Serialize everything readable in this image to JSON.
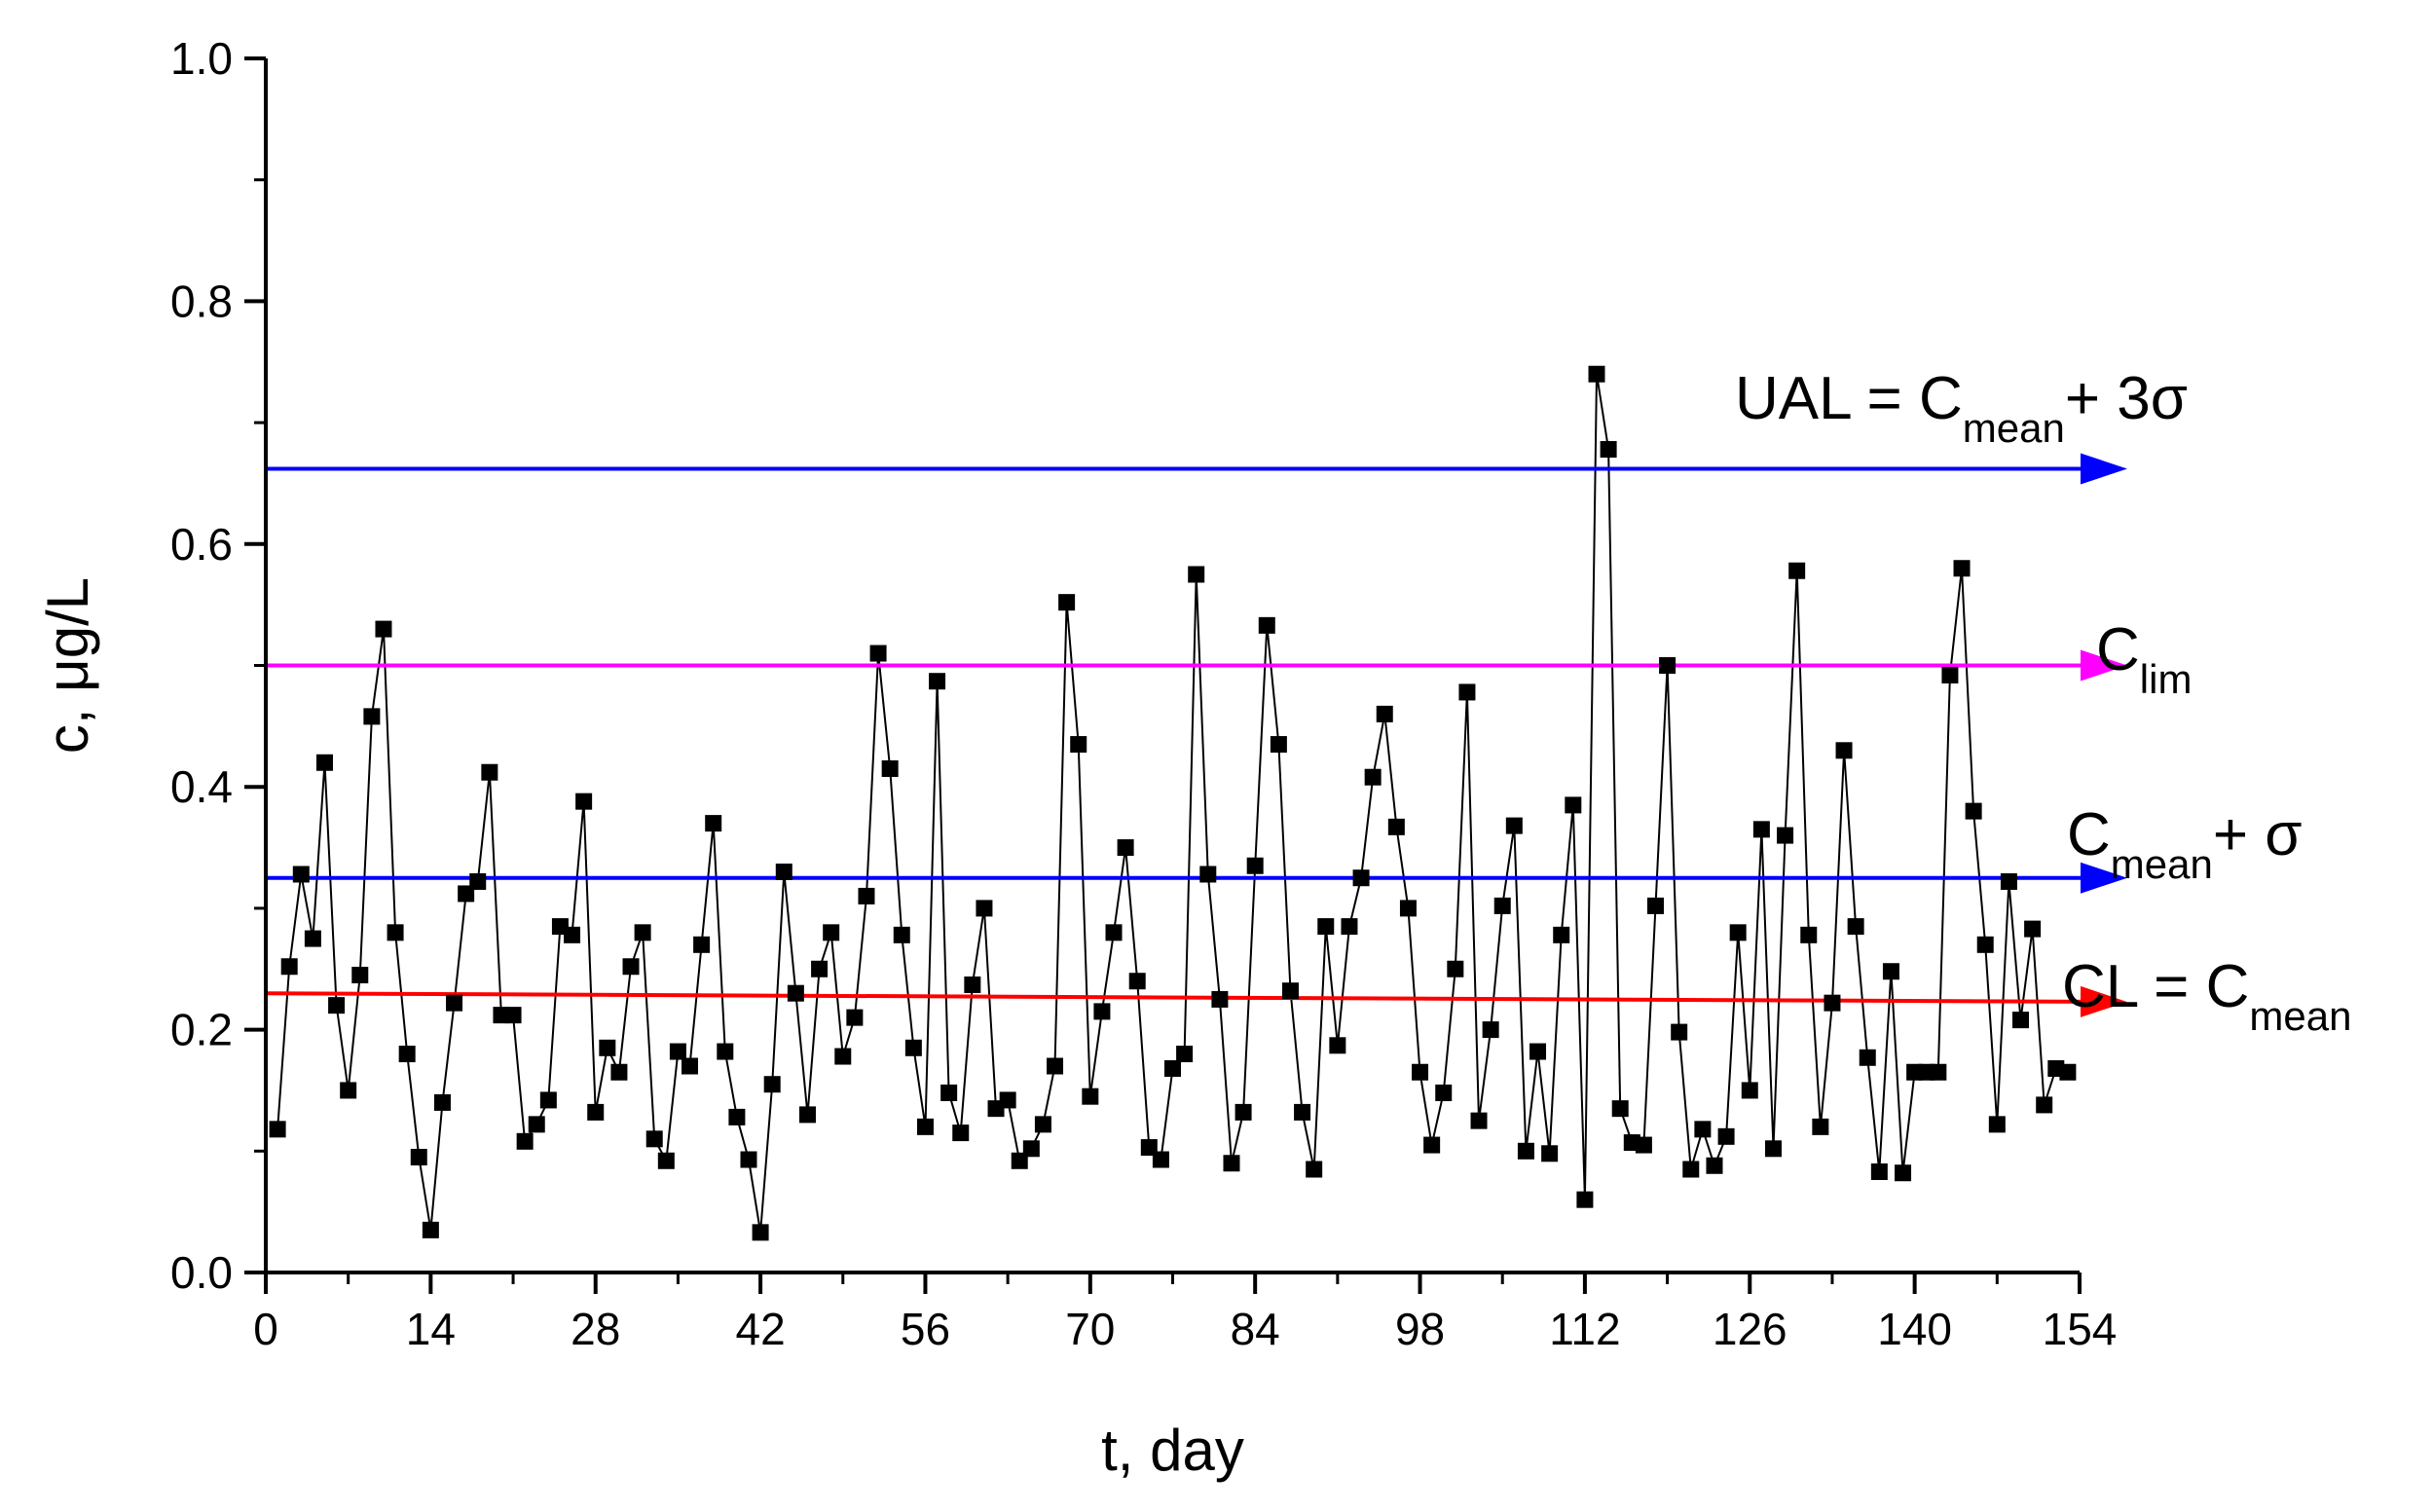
{
  "chart_data": {
    "type": "line",
    "title": "",
    "xlabel": "t, day",
    "ylabel": "c, μg/L",
    "xlim": [
      0,
      154
    ],
    "ylim": [
      0,
      1.0
    ],
    "xticks": [
      0,
      14,
      28,
      42,
      56,
      70,
      84,
      98,
      112,
      126,
      140,
      154
    ],
    "yticks": [
      0.0,
      0.2,
      0.4,
      0.6,
      0.8,
      1.0
    ],
    "xtick_labels": [
      "0",
      "14",
      "28",
      "42",
      "56",
      "70",
      "84",
      "98",
      "112",
      "126",
      "140",
      "154"
    ],
    "ytick_labels": [
      "0.0",
      "0.2",
      "0.4",
      "0.6",
      "0.8",
      "1.0"
    ],
    "grid": false,
    "series": [
      {
        "marker": "square",
        "color": "#000000",
        "x": [
          1,
          2,
          3,
          4,
          5,
          6,
          7,
          8,
          9,
          10,
          11,
          12,
          13,
          14,
          15,
          16,
          17,
          18,
          19,
          20,
          21,
          22,
          23,
          24,
          25,
          26,
          27,
          28,
          29,
          30,
          31,
          32,
          33,
          34,
          35,
          36,
          37,
          38,
          39,
          40,
          41,
          42,
          43,
          44,
          45,
          46,
          47,
          48,
          49,
          50,
          51,
          52,
          53,
          54,
          55,
          56,
          57,
          58,
          59,
          60,
          61,
          62,
          63,
          64,
          65,
          66,
          67,
          68,
          69,
          70,
          71,
          72,
          73,
          74,
          75,
          76,
          77,
          78,
          79,
          80,
          81,
          82,
          83,
          84,
          85,
          86,
          87,
          88,
          89,
          90,
          91,
          92,
          93,
          94,
          95,
          96,
          97,
          98,
          99,
          100,
          101,
          102,
          103,
          104,
          105,
          106,
          107,
          108,
          109,
          110,
          111,
          112,
          113,
          114,
          115,
          116,
          117,
          118,
          119,
          120,
          121,
          122,
          123,
          124,
          125,
          126,
          127,
          128,
          129,
          130,
          131,
          132,
          133,
          134,
          135,
          136,
          137,
          138,
          139,
          140,
          141,
          142,
          143,
          144,
          145,
          146,
          147,
          148,
          149,
          150,
          151,
          152,
          153
        ],
        "y": [
          0.118,
          0.252,
          0.328,
          0.275,
          0.42,
          0.22,
          0.15,
          0.245,
          0.458,
          0.53,
          0.28,
          0.18,
          0.095,
          0.035,
          0.14,
          0.222,
          0.312,
          0.322,
          0.412,
          0.212,
          0.212,
          0.108,
          0.122,
          0.142,
          0.285,
          0.278,
          0.388,
          0.132,
          0.185,
          0.165,
          0.252,
          0.28,
          0.11,
          0.092,
          0.182,
          0.17,
          0.27,
          0.37,
          0.182,
          0.128,
          0.093,
          0.033,
          0.155,
          0.33,
          0.23,
          0.13,
          0.25,
          0.28,
          0.178,
          0.21,
          0.31,
          0.51,
          0.415,
          0.278,
          0.185,
          0.12,
          0.487,
          0.148,
          0.115,
          0.237,
          0.3,
          0.135,
          0.142,
          0.092,
          0.102,
          0.122,
          0.17,
          0.552,
          0.435,
          0.145,
          0.215,
          0.28,
          0.35,
          0.24,
          0.103,
          0.093,
          0.168,
          0.18,
          0.575,
          0.328,
          0.225,
          0.09,
          0.132,
          0.335,
          0.533,
          0.435,
          0.232,
          0.132,
          0.085,
          0.285,
          0.187,
          0.285,
          0.325,
          0.408,
          0.46,
          0.367,
          0.3,
          0.165,
          0.105,
          0.148,
          0.25,
          0.478,
          0.125,
          0.2,
          0.302,
          0.368,
          0.1,
          0.182,
          0.098,
          0.278,
          0.385,
          0.06,
          0.74,
          0.678,
          0.135,
          0.107,
          0.105,
          0.302,
          0.5,
          0.198,
          0.085,
          0.118,
          0.088,
          0.112,
          0.28,
          0.15,
          0.365,
          0.102,
          0.36,
          0.578,
          0.278,
          0.12,
          0.222,
          0.43,
          0.285,
          0.177,
          0.083,
          0.248,
          0.082,
          0.165,
          0.165,
          0.165,
          0.492,
          0.58,
          0.38,
          0.27,
          0.122,
          0.322,
          0.208,
          0.283,
          0.138,
          0.168,
          0.165
        ]
      }
    ],
    "reference_lines": [
      {
        "y_start": 0.662,
        "y_end": 0.662,
        "color": "#0000ff",
        "label_main": "UAL = C",
        "label_sub": "mean",
        "label_tail": "+ 3σ"
      },
      {
        "y_start": 0.5,
        "y_end": 0.5,
        "color": "#ff00ff",
        "label_main": "C",
        "label_sub": "lim",
        "label_tail": ""
      },
      {
        "y_start": 0.325,
        "y_end": 0.325,
        "color": "#0000ff",
        "label_main": "C",
        "label_sub": "mean",
        "label_tail": "+ σ"
      },
      {
        "y_start": 0.23,
        "y_end": 0.223,
        "color": "#ff0000",
        "label_main": "CL = C",
        "label_sub": "mean",
        "label_tail": ""
      }
    ]
  }
}
